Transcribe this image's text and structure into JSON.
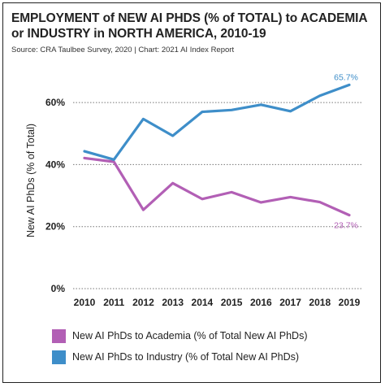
{
  "title": "EMPLOYMENT of NEW AI PHDS (% of TOTAL) to ACADEMIA or INDUSTRY in NORTH AMERICA, 2010-19",
  "source": "Source: CRA Taulbee Survey, 2020 | Chart: 2021 AI Index Report",
  "chart_data": {
    "type": "line",
    "x": [
      "2010",
      "2011",
      "2012",
      "2013",
      "2014",
      "2015",
      "2016",
      "2017",
      "2018",
      "2019"
    ],
    "ylabel": "New AI PhDs (% of Total)",
    "ylim": [
      0,
      70
    ],
    "yticks": [
      "0%",
      "20%",
      "40%",
      "60%"
    ],
    "grid": "horizontal dotted",
    "legend_position": "bottom",
    "series": [
      {
        "name": "New AI PhDs to Academia (% of Total New AI PhDs)",
        "color": "#b25fb5",
        "values": [
          42.1,
          40.9,
          25.4,
          34.0,
          28.9,
          31.1,
          27.8,
          29.5,
          27.9,
          23.7
        ],
        "end_label": "23.7%"
      },
      {
        "name": "New AI PhDs to Industry (% of Total New AI PhDs)",
        "color": "#3e8ec9",
        "values": [
          44.3,
          41.6,
          54.7,
          49.3,
          57.0,
          57.6,
          59.3,
          57.2,
          62.2,
          65.7
        ],
        "end_label": "65.7%"
      }
    ]
  }
}
